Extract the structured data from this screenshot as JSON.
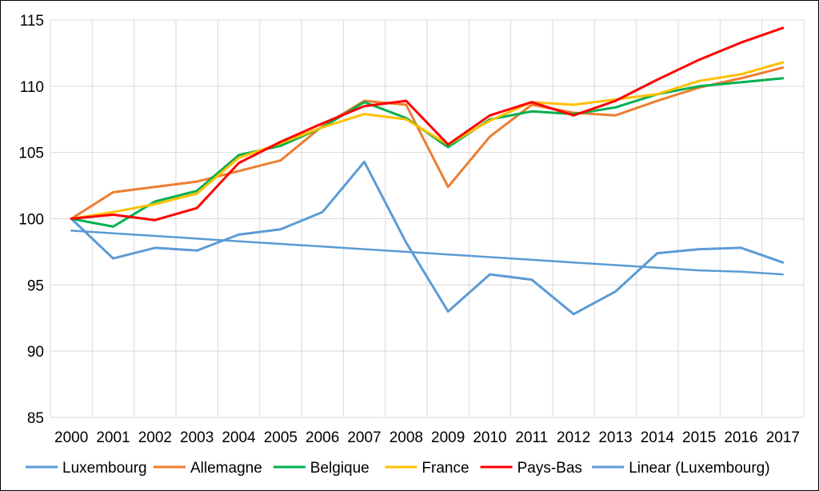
{
  "chart_data": {
    "type": "line",
    "title": "",
    "xlabel": "",
    "ylabel": "",
    "categories": [
      "2000",
      "2001",
      "2002",
      "2003",
      "2004",
      "2005",
      "2006",
      "2007",
      "2008",
      "2009",
      "2010",
      "2011",
      "2012",
      "2013",
      "2014",
      "2015",
      "2016",
      "2017"
    ],
    "ylim": [
      85,
      115
    ],
    "yticks": [
      "85",
      "90",
      "95",
      "100",
      "105",
      "110",
      "115"
    ],
    "ytick_values": [
      85,
      90,
      95,
      100,
      105,
      110,
      115
    ],
    "grid": "horizontal",
    "legend_position": "bottom",
    "series": [
      {
        "name": "Luxembourg",
        "color": "#5b9bd5",
        "values": [
          100,
          97.0,
          97.8,
          97.6,
          98.8,
          99.2,
          100.5,
          104.3,
          98.2,
          93.0,
          95.8,
          95.4,
          92.8,
          94.5,
          97.4,
          97.7,
          97.8,
          96.7
        ]
      },
      {
        "name": "Allemagne",
        "color": "#ed7d31",
        "values": [
          100,
          102.0,
          102.4,
          102.8,
          103.6,
          104.4,
          107.0,
          108.9,
          108.6,
          102.4,
          106.2,
          108.6,
          108.0,
          107.8,
          108.9,
          109.9,
          110.6,
          111.4
        ]
      },
      {
        "name": "Belgique",
        "color": "#00b050",
        "values": [
          100,
          99.4,
          101.3,
          102.1,
          104.8,
          105.5,
          106.9,
          108.8,
          107.6,
          105.4,
          107.5,
          108.1,
          107.9,
          108.4,
          109.4,
          110.0,
          110.3,
          110.6
        ]
      },
      {
        "name": "France",
        "color": "#ffc000",
        "values": [
          100,
          100.5,
          101.1,
          101.9,
          104.6,
          105.7,
          106.9,
          107.9,
          107.5,
          105.6,
          107.4,
          108.8,
          108.6,
          109.0,
          109.4,
          110.4,
          110.9,
          111.8
        ]
      },
      {
        "name": "Pays-Bas",
        "color": "#ff0000",
        "values": [
          100,
          100.3,
          99.9,
          100.8,
          104.2,
          105.8,
          107.2,
          108.5,
          108.9,
          105.6,
          107.8,
          108.8,
          107.8,
          108.9,
          110.5,
          112.0,
          113.3,
          114.4
        ]
      },
      {
        "name": "Linear (Luxembourg)",
        "color": "#5b9bd5",
        "trendline": true,
        "values": [
          99.1,
          98.9,
          98.7,
          98.5,
          98.3,
          98.1,
          97.9,
          97.7,
          97.5,
          97.3,
          97.1,
          96.9,
          96.7,
          96.5,
          96.3,
          96.1,
          96.0,
          95.8
        ]
      }
    ]
  }
}
